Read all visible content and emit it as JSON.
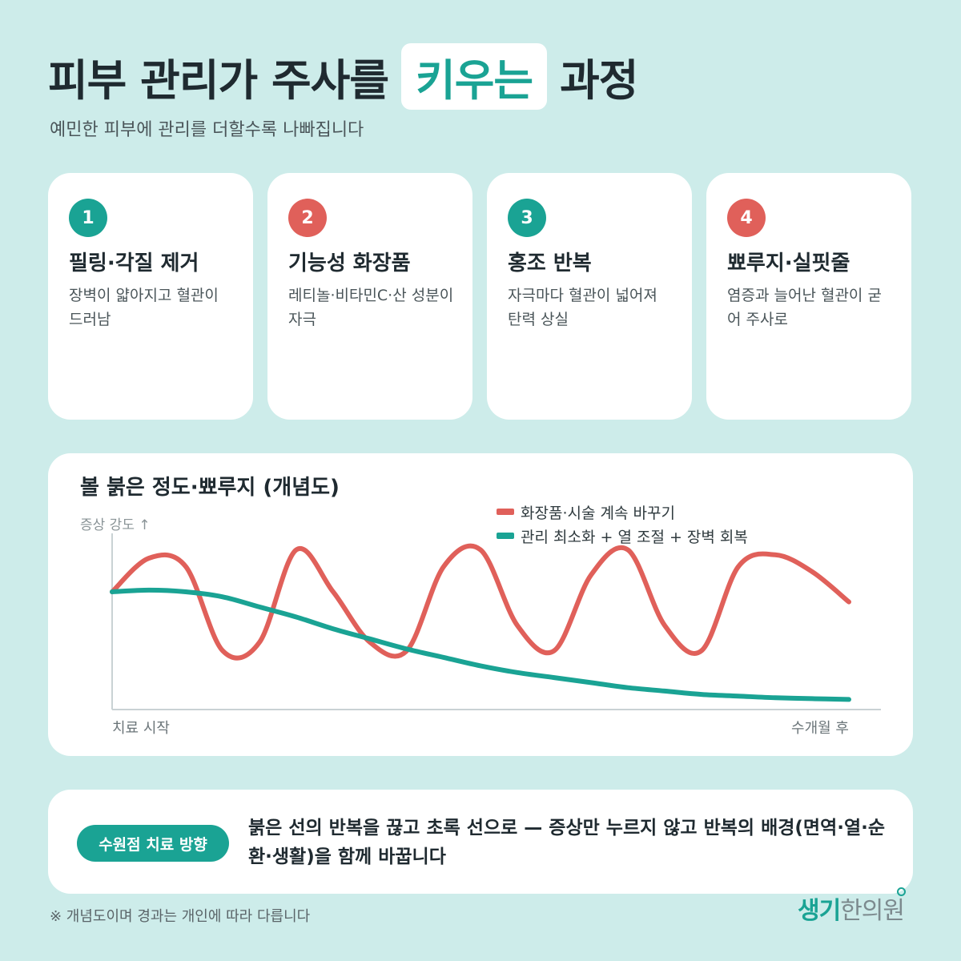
{
  "header": {
    "title_pre": "피부 관리가 주사를",
    "title_highlight": "키우는",
    "title_post": "과정",
    "subtitle": "예민한 피부에 관리를 더할수록 나빠집니다"
  },
  "steps": [
    {
      "num": "1",
      "title": "필링·각질 제거",
      "desc": "장벽이 얇아지고 혈관이 드러남",
      "color": "#1aa394"
    },
    {
      "num": "2",
      "title": "기능성 화장품",
      "desc": "레티놀·비타민C·산 성분이 자극",
      "color": "#e0605a"
    },
    {
      "num": "3",
      "title": "홍조 반복",
      "desc": "자극마다 혈관이 넓어져 탄력 상실",
      "color": "#1aa394"
    },
    {
      "num": "4",
      "title": "뾰루지·실핏줄",
      "desc": "염증과 늘어난 혈관이 굳어 주사로",
      "color": "#e0605a"
    }
  ],
  "chart_data": {
    "type": "line",
    "title": "볼 붉은 정도·뾰루지 (개념도)",
    "ylabel": "증상 강도 ↑",
    "x_start_label": "치료 시작",
    "x_end_label": "수개월 후",
    "x": [
      0,
      0.05,
      0.1,
      0.15,
      0.2,
      0.25,
      0.3,
      0.35,
      0.4,
      0.45,
      0.5,
      0.55,
      0.6,
      0.65,
      0.7,
      0.75,
      0.8,
      0.85,
      0.9,
      0.95,
      1.0
    ],
    "ylim": [
      0,
      1
    ],
    "series": [
      {
        "name": "화장품·시술 계속 바꾸기",
        "color": "#e0605a",
        "values": [
          0.7,
          0.9,
          0.85,
          0.35,
          0.4,
          0.95,
          0.7,
          0.4,
          0.35,
          0.85,
          0.95,
          0.5,
          0.35,
          0.8,
          0.95,
          0.5,
          0.35,
          0.85,
          0.92,
          0.82,
          0.64
        ]
      },
      {
        "name": "관리 최소화 + 열 조절 + 장벽 회복",
        "color": "#1aa394",
        "values": [
          0.7,
          0.71,
          0.7,
          0.67,
          0.61,
          0.55,
          0.48,
          0.42,
          0.36,
          0.31,
          0.26,
          0.22,
          0.19,
          0.16,
          0.13,
          0.11,
          0.09,
          0.08,
          0.07,
          0.065,
          0.06
        ]
      }
    ]
  },
  "bottom": {
    "pill": "수원점 치료 방향",
    "text": "붉은 선의 반복을 끊고 초록 선으로 — 증상만 누르지 않고 반복의 배경(면역·열·순환·생활)을 함께 바꿉니다"
  },
  "footnote": "※ 개념도이며 경과는 개인에 따라 다릅니다",
  "logo": {
    "part1": "생기",
    "part2": "한의원"
  }
}
